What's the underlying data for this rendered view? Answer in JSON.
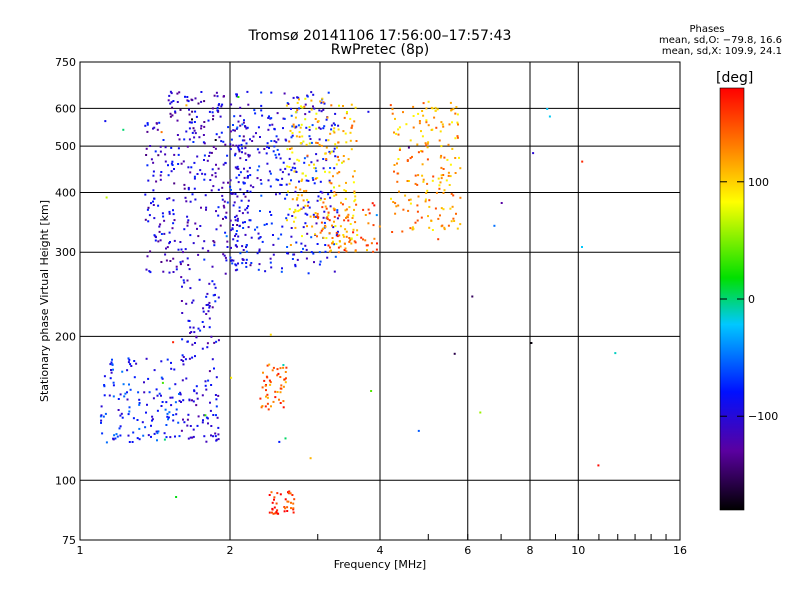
{
  "header": {
    "title_line1": "Tromsø 20141106 17:56:00–17:57:43",
    "title_line2": "RwPretec (8p)"
  },
  "phases_box": {
    "heading": "Phases",
    "line_o": "mean, sd,O: −79.8, 16.6",
    "line_x": "mean, sd,X: 109.9, 24.1"
  },
  "colorbar": {
    "label": "[deg]",
    "ticks": [
      "100",
      "0",
      "−100"
    ],
    "tick_values": [
      100,
      0,
      -100
    ],
    "range": [
      -180,
      180
    ]
  },
  "chart_data": {
    "type": "scatter",
    "title": "Tromsø 20141106 17:56:00–17:57:43",
    "subtitle": "RwPretec (8p)",
    "xlabel": "Frequency [MHz]",
    "ylabel": "Stationary phase Virtual Height [km]",
    "xscale": "log",
    "yscale": "log",
    "xlim": [
      1,
      16
    ],
    "ylim": [
      75,
      750
    ],
    "xticks": [
      1,
      2,
      4,
      6,
      8,
      10,
      16
    ],
    "xtick_labels": [
      "1",
      "2",
      "4",
      "6",
      "8",
      "10",
      "16"
    ],
    "yticks": [
      75,
      100,
      200,
      300,
      400,
      500,
      600,
      750
    ],
    "ytick_labels": [
      "75",
      "100",
      "200",
      "300",
      "400",
      "500",
      "600",
      "750"
    ],
    "grid": true,
    "color_encoding": "phase (deg)",
    "colors": [
      "#000000",
      "#5a00a0",
      "#0010ff",
      "#00c8ff",
      "#00e000",
      "#ffff00",
      "#ff8000",
      "#ff0000"
    ],
    "clusters": [
      {
        "x_range": [
          1.5,
          1.95
        ],
        "y_range": [
          560,
          650
        ],
        "phase": -110
      },
      {
        "x_range": [
          1.35,
          2.2
        ],
        "y_range": [
          265,
          560
        ],
        "phase": -105
      },
      {
        "x_range": [
          2.0,
          3.3
        ],
        "y_range": [
          270,
          650
        ],
        "phase": -90
      },
      {
        "x_range": [
          2.6,
          3.6
        ],
        "y_range": [
          310,
          630
        ],
        "phase": 110
      },
      {
        "x_range": [
          3.0,
          4.0
        ],
        "y_range": [
          300,
          380
        ],
        "phase": 140
      },
      {
        "x_range": [
          4.2,
          5.8
        ],
        "y_range": [
          330,
          620
        ],
        "phase": 120
      },
      {
        "x_range": [
          1.6,
          1.9
        ],
        "y_range": [
          120,
          265
        ],
        "phase": -100
      },
      {
        "x_range": [
          1.1,
          1.6
        ],
        "y_range": [
          120,
          180
        ],
        "phase": -80
      },
      {
        "x_range": [
          2.3,
          2.6
        ],
        "y_range": [
          140,
          175
        ],
        "phase": 140
      },
      {
        "x_range": [
          2.4,
          2.7
        ],
        "y_range": [
          85,
          95
        ],
        "phase": 170
      }
    ]
  }
}
